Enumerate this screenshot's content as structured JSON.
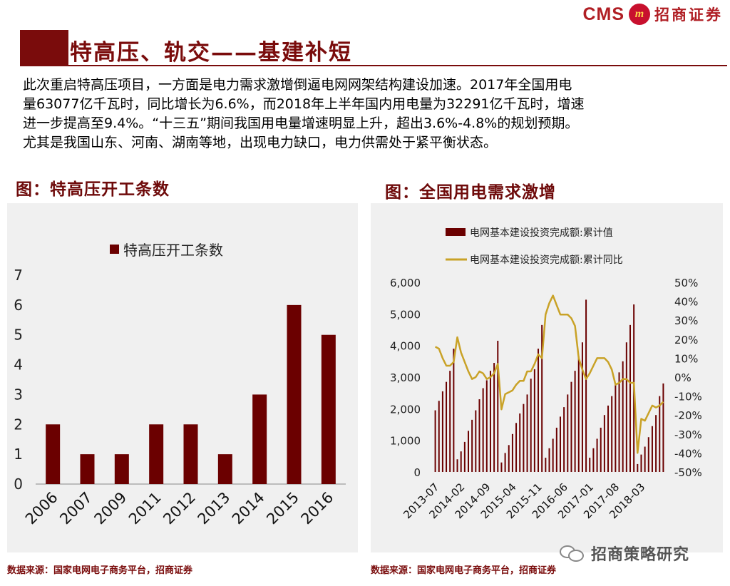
{
  "header": {
    "logo_latin": "CMS",
    "logo_badge": "m",
    "logo_cn": "招商证券",
    "title": "特高压、轨交——基建补短"
  },
  "description": [
    "此次重启特高压项目，一方面是电力需求激增倒逼电网网架结构建设加速。2017年全国用电",
    "量63077亿千瓦时，同比增长为6.6%，而2018年上半年国内用电量为32291亿千瓦时，增速",
    "进一步提高至9.4%。“十三五”期间我国用电量增速明显上升，超出3.6%-4.8%的规划预期。",
    "尤其是我国山东、河南、湖南等地，出现电力缺口，电力供需处于紧平衡状态。"
  ],
  "left_figure": {
    "title": "图：特高压开工条数",
    "source": "数据来源：国家电网电子商务平台，招商证券"
  },
  "right_figure": {
    "title": "图：全国用电需求激增",
    "source": "数据来源：国家电网电子商务平台，招商证券"
  },
  "watermark": "招商策略研究",
  "colors": {
    "bar": "#6b0000",
    "line": "#c9a227",
    "brand": "#7a0c0c",
    "panel": "#f0f0f0"
  },
  "chart_data": [
    {
      "type": "bar",
      "legend": [
        "特高压开工条数"
      ],
      "categories": [
        "2006",
        "2007",
        "2009",
        "2011",
        "2012",
        "2013",
        "2014",
        "2015",
        "2016"
      ],
      "series": [
        {
          "name": "特高压开工条数",
          "values": [
            2,
            1,
            1,
            2,
            2,
            1,
            3,
            6,
            5
          ]
        }
      ],
      "ylim": [
        0,
        7
      ],
      "yticks": [
        "0",
        "1",
        "2",
        "3",
        "4",
        "5",
        "6",
        "7"
      ],
      "legend_position": "top-center",
      "grid": false
    },
    {
      "type": "bar+line",
      "legend": [
        "电网基本建设投资完成额:累计值",
        "电网基本建设投资完成额:累计同比"
      ],
      "x_tick_labels": [
        "2013-07",
        "2014-02",
        "2014-09",
        "2015-04",
        "2015-11",
        "2016-06",
        "2017-01",
        "2017-08",
        "2018-03"
      ],
      "y_left_ticks": [
        "0",
        "1,000",
        "2,000",
        "3,000",
        "4,000",
        "5,000",
        "6,000"
      ],
      "y_right_ticks": [
        "-50%",
        "-40%",
        "-30%",
        "-20%",
        "-10%",
        "0%",
        "10%",
        "20%",
        "30%",
        "40%",
        "50%"
      ],
      "ylim_left": [
        0,
        6000
      ],
      "ylim_right": [
        -50,
        50
      ],
      "series": [
        {
          "name": "电网基本建设投资完成额:累计值",
          "axis": "left",
          "type": "bar",
          "values": [
            1950,
            2250,
            2550,
            2850,
            3200,
            3900,
            400,
            650,
            950,
            1300,
            1650,
            1950,
            2300,
            2650,
            2900,
            3200,
            3450,
            4150,
            300,
            600,
            850,
            1200,
            1550,
            1850,
            2150,
            2450,
            2950,
            3250,
            3900,
            4650,
            450,
            750,
            1050,
            1400,
            1750,
            2050,
            2450,
            2850,
            3200,
            3650,
            4100,
            5450,
            450,
            750,
            1050,
            1400,
            1800,
            2100,
            2400,
            2750,
            3150,
            3500,
            4100,
            4650,
            5300,
            250,
            550,
            800,
            1100,
            1450,
            1800,
            2400,
            2800
          ]
        },
        {
          "name": "电网基本建设投资完成额:累计同比",
          "axis": "right",
          "type": "line",
          "values": [
            16,
            15,
            10,
            6,
            6,
            8,
            21,
            13,
            8,
            3,
            -1,
            0,
            3,
            2,
            -1,
            0,
            2,
            7,
            -17,
            -9,
            -8,
            -7,
            -4,
            -2,
            -2,
            3,
            3,
            7,
            12,
            10,
            33,
            39,
            43,
            38,
            33,
            33,
            33,
            31,
            27,
            10,
            4,
            -1,
            2,
            6,
            10,
            10,
            10,
            8,
            4,
            -4,
            -3,
            -1,
            -1,
            -3,
            -3,
            -40,
            -22,
            -23,
            -19,
            -15,
            -16,
            -15,
            -13
          ]
        }
      ],
      "grid": false,
      "legend_position": "top"
    }
  ]
}
